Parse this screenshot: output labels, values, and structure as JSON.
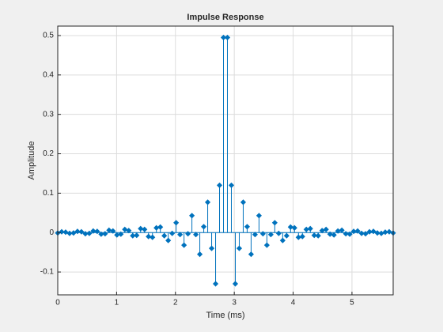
{
  "chart_data": {
    "type": "stem",
    "title": "Impulse Response",
    "xlabel": "Time (ms)",
    "ylabel": "Amplitude",
    "color": "#0072bd",
    "grid": true,
    "xlim": [
      0,
      5.7
    ],
    "ylim": [
      -0.158,
      0.524
    ],
    "xticks": [
      0,
      1,
      2,
      3,
      4,
      5
    ],
    "yticks": [
      -0.1,
      0,
      0.1,
      0.2,
      0.3,
      0.4,
      0.5
    ],
    "x": [
      0,
      0.0671,
      0.1341,
      0.2012,
      0.2682,
      0.3353,
      0.4024,
      0.4694,
      0.5365,
      0.6035,
      0.6706,
      0.7376,
      0.8047,
      0.8718,
      0.9388,
      1.0059,
      1.0729,
      1.14,
      1.2071,
      1.2741,
      1.3412,
      1.4082,
      1.4753,
      1.5424,
      1.6094,
      1.6765,
      1.7435,
      1.8106,
      1.8776,
      1.9447,
      2.0118,
      2.0788,
      2.1459,
      2.2129,
      2.28,
      2.3471,
      2.4141,
      2.4812,
      2.5482,
      2.6153,
      2.6824,
      2.7494,
      2.8165,
      2.8835,
      2.9506,
      3.0176,
      3.0847,
      3.1518,
      3.2188,
      3.2859,
      3.3529,
      3.42,
      3.4871,
      3.5541,
      3.6212,
      3.6882,
      3.7553,
      3.8224,
      3.8894,
      3.9565,
      4.0235,
      4.0906,
      4.1576,
      4.2247,
      4.2918,
      4.3588,
      4.4259,
      4.4929,
      4.56,
      4.6271,
      4.6941,
      4.7612,
      4.8282,
      4.8953,
      4.9624,
      5.0294,
      5.0965,
      5.1635,
      5.2306,
      5.2976,
      5.3647,
      5.4318,
      5.4988,
      5.5659,
      5.6329,
      5.7
    ],
    "values": [
      -0.001,
      0.002,
      0.001,
      -0.002,
      -0.001,
      0.003,
      0.002,
      -0.003,
      -0.002,
      0.004,
      0.003,
      -0.004,
      -0.003,
      0.006,
      0.004,
      -0.006,
      -0.004,
      0.008,
      0.005,
      -0.008,
      -0.007,
      0.01,
      0.008,
      -0.01,
      -0.012,
      0.012,
      0.014,
      -0.008,
      -0.02,
      -0.002,
      0.025,
      -0.005,
      -0.032,
      -0.003,
      0.043,
      -0.005,
      -0.055,
      0.015,
      0.077,
      -0.04,
      -0.13,
      0.12,
      0.495,
      0.495,
      0.12,
      -0.13,
      -0.04,
      0.077,
      0.015,
      -0.055,
      -0.005,
      0.043,
      -0.003,
      -0.032,
      -0.005,
      0.025,
      -0.002,
      -0.02,
      -0.008,
      0.014,
      0.012,
      -0.012,
      -0.01,
      0.008,
      0.01,
      -0.007,
      -0.008,
      0.005,
      0.008,
      -0.004,
      -0.006,
      0.004,
      0.006,
      -0.003,
      -0.004,
      0.003,
      0.004,
      -0.002,
      -0.003,
      0.002,
      0.003,
      -0.001,
      -0.002,
      0.001,
      0.002,
      -0.001
    ]
  }
}
